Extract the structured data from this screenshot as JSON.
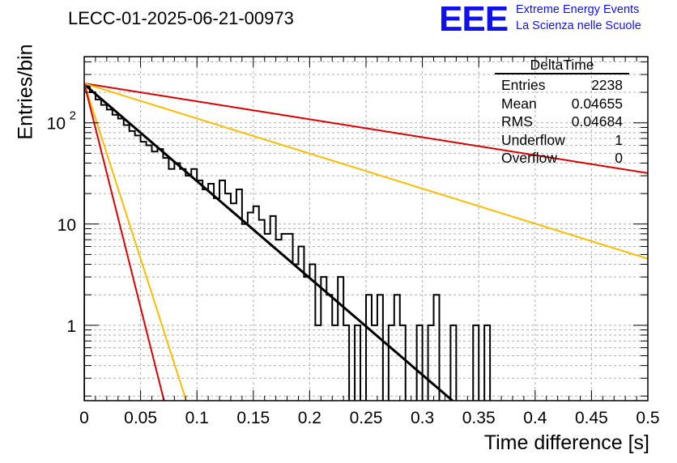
{
  "header": {
    "title": "LECC-01-2025-06-21-00973",
    "logo_text": "EEE",
    "logo_line1": "Extreme Energy Events",
    "logo_line2": "La Scienza nelle Scuole"
  },
  "stats_box": {
    "name": "DeltaTime",
    "rows": [
      {
        "label": "Entries",
        "value": "2238"
      },
      {
        "label": "Mean",
        "value": "0.04655"
      },
      {
        "label": "RMS",
        "value": "0.04684"
      },
      {
        "label": "Underflow",
        "value": "1"
      },
      {
        "label": "Overflow",
        "value": "0"
      }
    ]
  },
  "colors": {
    "histogram": "#000000",
    "fit": "#000000",
    "red_bounds": "#dd0000",
    "yellow_bounds": "#ffbb00",
    "grid": "#b0b0b0"
  },
  "chart_data": {
    "type": "histogram",
    "title": "LECC-01-2025-06-21-00973",
    "xlabel": "Time difference [s]",
    "ylabel": "Entries/bin",
    "xlim": [
      0,
      0.5
    ],
    "ylim": [
      0.18,
      450
    ],
    "y_scale": "log",
    "grid": true,
    "x_ticks": [
      {
        "v": 0,
        "label": "0"
      },
      {
        "v": 0.05,
        "label": "0.05"
      },
      {
        "v": 0.1,
        "label": "0.1"
      },
      {
        "v": 0.15,
        "label": "0.15"
      },
      {
        "v": 0.2,
        "label": "0.2"
      },
      {
        "v": 0.25,
        "label": "0.25"
      },
      {
        "v": 0.3,
        "label": "0.3"
      },
      {
        "v": 0.35,
        "label": "0.35"
      },
      {
        "v": 0.4,
        "label": "0.4"
      },
      {
        "v": 0.45,
        "label": "0.45"
      },
      {
        "v": 0.5,
        "label": "0.5"
      }
    ],
    "y_ticks": [
      {
        "v": 1,
        "label": "1"
      },
      {
        "v": 10,
        "label": "10"
      },
      {
        "v": 100,
        "label": "10",
        "exp": "2"
      }
    ],
    "bin_width": 0.005,
    "bin_counts": [
      230,
      200,
      170,
      150,
      135,
      120,
      110,
      95,
      83,
      75,
      65,
      60,
      52,
      55,
      45,
      35,
      40,
      35,
      30,
      35,
      27,
      22,
      25,
      18,
      27,
      20,
      16,
      22,
      10,
      13,
      15,
      11,
      8,
      12,
      7,
      8,
      8,
      4,
      6,
      3,
      4,
      1,
      3,
      2,
      1,
      3,
      1,
      0.1,
      1,
      0.1,
      2,
      1,
      2,
      0.1,
      1,
      2,
      1,
      0.1,
      0.1,
      1,
      0.1,
      1,
      2,
      0.1,
      0.1,
      1,
      0.1,
      0.1,
      0.1,
      1,
      0.1,
      1,
      0.1,
      0.1,
      0.1,
      0.1,
      0.1,
      0.1,
      0.1,
      0.1,
      0.1
    ],
    "series": [
      {
        "name": "fit",
        "type": "exponential",
        "A": 240,
        "tau": 0.0454,
        "x_end": 0.5
      },
      {
        "name": "upper-red",
        "type": "exponential",
        "A": 245,
        "tau": 0.245,
        "x_end": 0.5
      },
      {
        "name": "upper-yellow",
        "type": "exponential",
        "A": 245,
        "tau": 0.1254,
        "x_end": 0.5
      },
      {
        "name": "lower-yellow",
        "type": "exponential",
        "A": 245,
        "tau": 0.01254,
        "x_end": 0.5
      },
      {
        "name": "lower-red",
        "type": "exponential",
        "A": 245,
        "tau": 0.00981,
        "x_end": 0.5
      }
    ]
  }
}
